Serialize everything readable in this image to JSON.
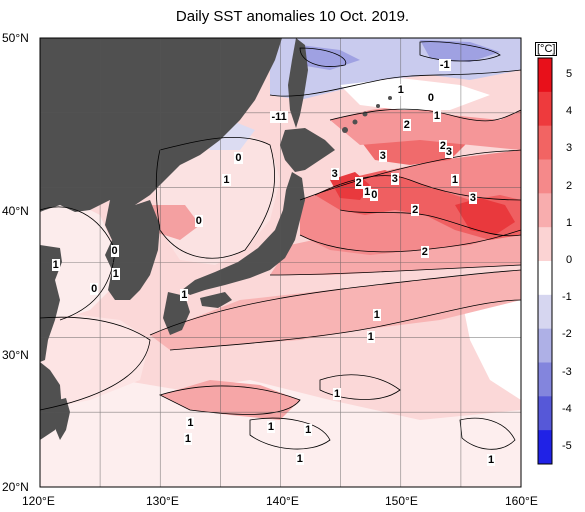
{
  "title": "Daily SST anomalies 10 Oct. 2019.",
  "map": {
    "lon_range": [
      120,
      160
    ],
    "lat_range": [
      20,
      50
    ],
    "lon_ticks": [
      "120°E",
      "130°E",
      "140°E",
      "150°E",
      "160°E"
    ],
    "lat_ticks": [
      "50°N",
      "40°N",
      "30°N",
      "20°N"
    ],
    "land_color": "#505050",
    "contour_labels": [
      {
        "text": "-1",
        "lon": 153.5,
        "lat": 48.2
      },
      {
        "text": "1",
        "lon": 150,
        "lat": 46.5
      },
      {
        "text": "0",
        "lon": 152.5,
        "lat": 46
      },
      {
        "text": "-11",
        "lon": 139.5,
        "lat": 44.7
      },
      {
        "text": "1",
        "lon": 153,
        "lat": 44.8
      },
      {
        "text": "2",
        "lon": 150.5,
        "lat": 44.2
      },
      {
        "text": "2",
        "lon": 153.5,
        "lat": 42.8
      },
      {
        "text": "3",
        "lon": 154,
        "lat": 42.4
      },
      {
        "text": "3",
        "lon": 148.5,
        "lat": 42.1
      },
      {
        "text": "0",
        "lon": 136.5,
        "lat": 42
      },
      {
        "text": "3",
        "lon": 144.5,
        "lat": 40.9
      },
      {
        "text": "3",
        "lon": 149.5,
        "lat": 40.6
      },
      {
        "text": "1",
        "lon": 135.5,
        "lat": 40.5
      },
      {
        "text": "2",
        "lon": 146.5,
        "lat": 40.3
      },
      {
        "text": "1",
        "lon": 147.2,
        "lat": 39.7
      },
      {
        "text": "0",
        "lon": 147.8,
        "lat": 39.5
      },
      {
        "text": "1",
        "lon": 154.5,
        "lat": 40.5
      },
      {
        "text": "3",
        "lon": 156,
        "lat": 39.3
      },
      {
        "text": "2",
        "lon": 151.2,
        "lat": 38.5
      },
      {
        "text": "0",
        "lon": 133.2,
        "lat": 37.8
      },
      {
        "text": "0",
        "lon": 126.2,
        "lat": 35.8
      },
      {
        "text": "2",
        "lon": 152,
        "lat": 35.7
      },
      {
        "text": "1",
        "lon": 121.3,
        "lat": 34.8
      },
      {
        "text": "1",
        "lon": 126.3,
        "lat": 34.2
      },
      {
        "text": "0",
        "lon": 124.5,
        "lat": 33.2
      },
      {
        "text": "1",
        "lon": 132,
        "lat": 32.8
      },
      {
        "text": "1",
        "lon": 148,
        "lat": 31.5
      },
      {
        "text": "1",
        "lon": 147.5,
        "lat": 30
      },
      {
        "text": "1",
        "lon": 144.7,
        "lat": 26.2
      },
      {
        "text": "1",
        "lon": 132.5,
        "lat": 24.3
      },
      {
        "text": "1",
        "lon": 139.2,
        "lat": 24
      },
      {
        "text": "1",
        "lon": 142.3,
        "lat": 23.8
      },
      {
        "text": "1",
        "lon": 132.3,
        "lat": 23.2
      },
      {
        "text": "1",
        "lon": 141.6,
        "lat": 21.9
      },
      {
        "text": "1",
        "lon": 157.5,
        "lat": 21.8
      }
    ]
  },
  "colorbar": {
    "unit": "[°C]",
    "labels": [
      "5",
      "4",
      "3",
      "2",
      "1",
      "0",
      "-1",
      "-2",
      "-3",
      "-4",
      "-5"
    ],
    "colors": [
      "#e8101a",
      "#ee3a3d",
      "#f26463",
      "#f5898a",
      "#f8adae",
      "#fbd3d3",
      "#ffffff",
      "#d6d6f0",
      "#aeb0e6",
      "#8385dd",
      "#5658d8",
      "#2022e6"
    ]
  }
}
